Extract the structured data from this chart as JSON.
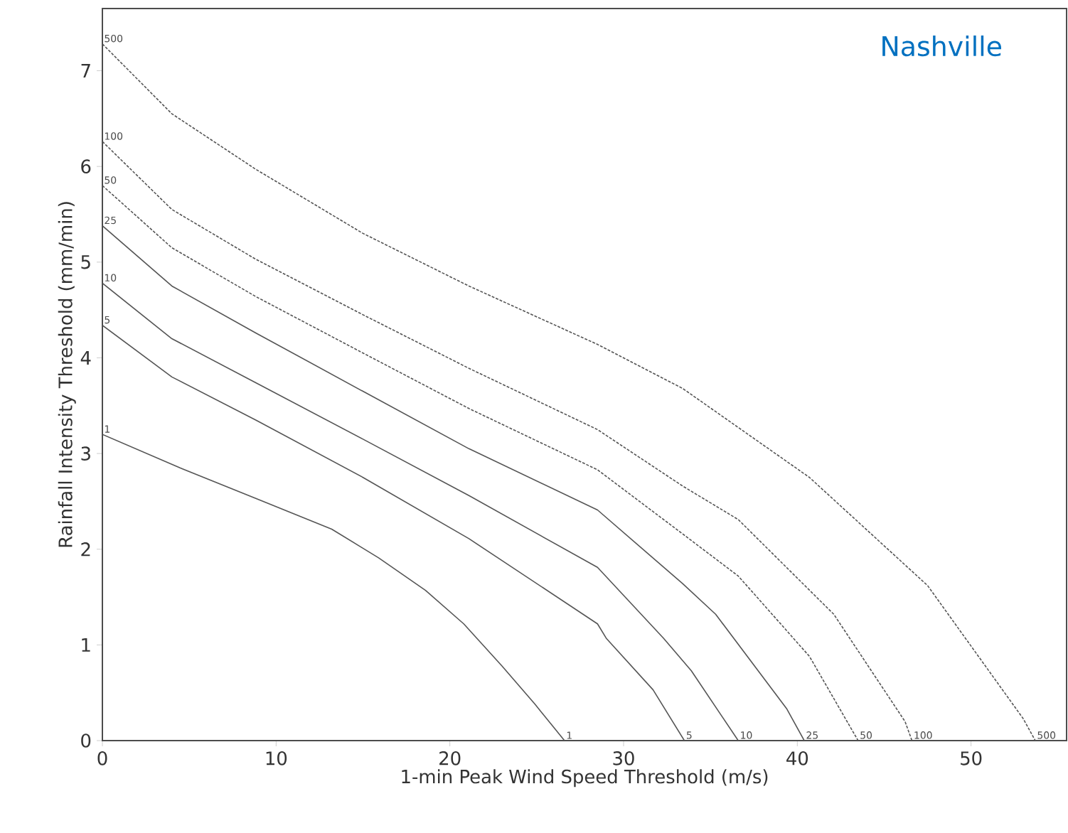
{
  "chart_data": {
    "type": "line",
    "title": "Nashville",
    "xlabel": "1-min Peak Wind Speed Threshold (m/s)",
    "ylabel": "Rainfall Intensity Threshold (mm/min)",
    "xlim": [
      0,
      55.5
    ],
    "ylim": [
      0,
      7.65
    ],
    "xticks": [
      0,
      10,
      20,
      30,
      40,
      50
    ],
    "yticks": [
      0,
      1,
      2,
      3,
      4,
      5,
      6,
      7
    ],
    "grid": false,
    "legend": false,
    "marker": "none",
    "series": [
      {
        "name": "1",
        "color": "#555555",
        "line_style": "solid",
        "x": [
          0,
          4.47,
          8.83,
          13.2,
          15.9,
          18.6,
          20.8,
          23.0,
          24.9,
          26.6
        ],
        "values": [
          3.2,
          2.85,
          2.53,
          2.21,
          1.91,
          1.57,
          1.22,
          0.78,
          0.38,
          0
        ]
      },
      {
        "name": "5",
        "color": "#555555",
        "line_style": "solid",
        "x": [
          0,
          4,
          8.83,
          15,
          21.1,
          28.5,
          29.0,
          31.7,
          33.5
        ],
        "values": [
          4.34,
          3.8,
          3.35,
          2.75,
          2.11,
          1.22,
          1.07,
          0.53,
          0
        ]
      },
      {
        "name": "10",
        "color": "#555555",
        "line_style": "solid",
        "x": [
          0,
          4,
          8.83,
          15,
          21.1,
          28.5,
          32.3,
          33.9,
          36.6
        ],
        "values": [
          4.78,
          4.2,
          3.74,
          3.15,
          2.56,
          1.81,
          1.07,
          0.73,
          0
        ]
      },
      {
        "name": "25",
        "color": "#555555",
        "line_style": "solid",
        "x": [
          0,
          4,
          8.83,
          15,
          21.1,
          28.5,
          33.4,
          35.3,
          39.4,
          40.4
        ],
        "values": [
          5.38,
          4.75,
          4.26,
          3.65,
          3.05,
          2.41,
          1.64,
          1.32,
          0.33,
          0
        ]
      },
      {
        "name": "50",
        "color": "#555555",
        "line_style": "dashed",
        "x": [
          0,
          4,
          8.83,
          15,
          21.1,
          28.5,
          33.4,
          36.6,
          40.7,
          43.5
        ],
        "values": [
          5.8,
          5.15,
          4.64,
          4.05,
          3.47,
          2.83,
          2.16,
          1.72,
          0.88,
          0
        ]
      },
      {
        "name": "100",
        "color": "#555555",
        "line_style": "dashed",
        "x": [
          0,
          4,
          8.83,
          15,
          21.1,
          28.5,
          33.4,
          36.6,
          42.1,
          46.2,
          46.6
        ],
        "values": [
          6.26,
          5.55,
          5.03,
          4.45,
          3.89,
          3.25,
          2.66,
          2.31,
          1.32,
          0.2,
          0
        ]
      },
      {
        "name": "500",
        "color": "#555555",
        "line_style": "dashed",
        "x": [
          0,
          4,
          8.83,
          15,
          21.1,
          28.5,
          33.4,
          40.7,
          47.5,
          53.0,
          53.7
        ],
        "values": [
          7.28,
          6.55,
          5.97,
          5.3,
          4.75,
          4.14,
          3.68,
          2.75,
          1.62,
          0.23,
          0
        ]
      }
    ],
    "annotations": [
      {
        "text": "1",
        "x": 26.6,
        "y": 0
      },
      {
        "text": "5",
        "x": 33.5,
        "y": 0
      },
      {
        "text": "10",
        "x": 36.6,
        "y": 0
      },
      {
        "text": "25",
        "x": 40.4,
        "y": 0
      },
      {
        "text": "50",
        "x": 43.5,
        "y": 0
      },
      {
        "text": "100",
        "x": 46.6,
        "y": 0
      },
      {
        "text": "500",
        "x": 53.7,
        "y": 0
      }
    ]
  }
}
